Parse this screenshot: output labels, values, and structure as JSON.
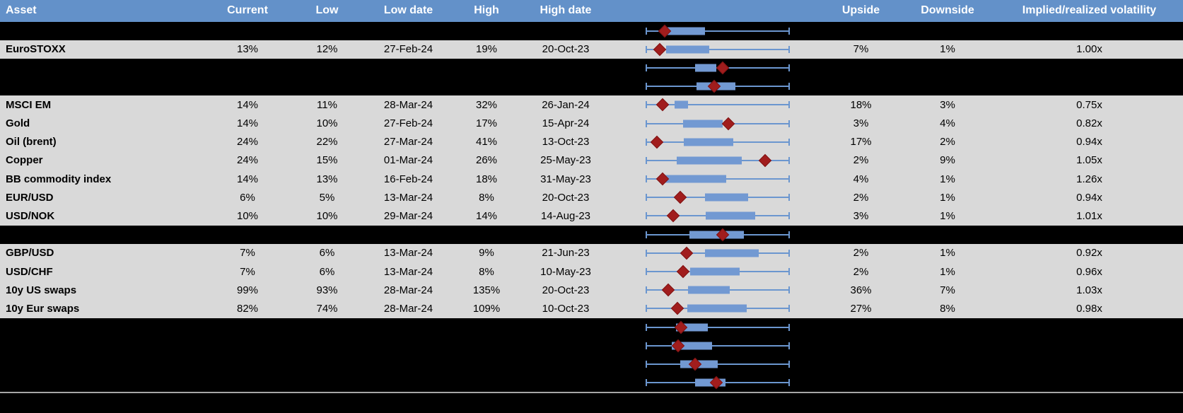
{
  "meta": {
    "description": "Implied volatility monitor table with 52-week range box plots",
    "colors": {
      "header_bg": "#6391c9",
      "header_text": "#ffffff",
      "data_row_bg": "#d9d9d9",
      "hidden_row_bg": "#000000",
      "box_fill": "#7299d2",
      "whisker": "#6b96cf",
      "marker": "#a11d1d",
      "divider": "#a6a6a6",
      "text": "#000000"
    }
  },
  "table": {
    "columns": [
      {
        "label": "Asset"
      },
      {
        "label": "Current"
      },
      {
        "label": "Low"
      },
      {
        "label": "Low date"
      },
      {
        "label": "High"
      },
      {
        "label": "High date"
      },
      {
        "label": ""
      },
      {
        "label": "Upside"
      },
      {
        "label": "Downside"
      },
      {
        "label": "Implied/realized volatility"
      }
    ],
    "rows": [
      {
        "type": "hidden",
        "plot": {
          "whisker": [
            0,
            1
          ],
          "box": [
            0.152,
            0.41
          ],
          "marker": 0.132
        }
      },
      {
        "type": "data",
        "asset": "EuroSTOXX",
        "current": "13%",
        "low": "12%",
        "low_date": "27-Feb-24",
        "high": "19%",
        "high_date": "20-Oct-23",
        "upside": "7%",
        "downside": "1%",
        "implied": "1.00x",
        "plot": {
          "whisker": [
            0,
            1
          ],
          "box": [
            0.141,
            0.443
          ],
          "marker": 0.097
        }
      },
      {
        "type": "hidden",
        "plot": {
          "whisker": [
            0,
            1
          ],
          "box": [
            0.343,
            0.49
          ],
          "marker": 0.534
        }
      },
      {
        "type": "hidden",
        "plot": {
          "whisker": [
            0,
            1
          ],
          "box": [
            0.353,
            0.623
          ],
          "marker": 0.475
        }
      },
      {
        "type": "data",
        "asset": "MSCI EM",
        "current": "14%",
        "low": "11%",
        "low_date": "28-Mar-24",
        "high": "32%",
        "high_date": "26-Jan-24",
        "upside": "18%",
        "downside": "3%",
        "implied": "0.75x",
        "plot": {
          "whisker": [
            0,
            1
          ],
          "box": [
            0.201,
            0.294
          ],
          "marker": 0.118
        }
      },
      {
        "type": "data",
        "asset": "Gold",
        "current": "14%",
        "low": "10%",
        "low_date": "27-Feb-24",
        "high": "17%",
        "high_date": "15-Apr-24",
        "upside": "3%",
        "downside": "4%",
        "implied": "0.82x",
        "plot": {
          "whisker": [
            0,
            1
          ],
          "box": [
            0.26,
            0.534
          ],
          "marker": 0.574
        }
      },
      {
        "type": "data",
        "asset": "Oil (brent)",
        "current": "24%",
        "low": "22%",
        "low_date": "27-Mar-24",
        "high": "41%",
        "high_date": "13-Oct-23",
        "upside": "17%",
        "downside": "2%",
        "implied": "0.94x",
        "plot": {
          "whisker": [
            0,
            1
          ],
          "box": [
            0.265,
            0.608
          ],
          "marker": 0.078
        }
      },
      {
        "type": "data",
        "asset": "Copper",
        "current": "24%",
        "low": "15%",
        "low_date": "01-Mar-24",
        "high": "26%",
        "high_date": "25-May-23",
        "upside": "2%",
        "downside": "9%",
        "implied": "1.05x",
        "plot": {
          "whisker": [
            0,
            1
          ],
          "box": [
            0.216,
            0.667
          ],
          "marker": 0.828
        }
      },
      {
        "type": "data",
        "asset": "BB commodity index",
        "current": "14%",
        "low": "13%",
        "low_date": "16-Feb-24",
        "high": "18%",
        "high_date": "31-May-23",
        "upside": "4%",
        "downside": "1%",
        "implied": "1.26x",
        "plot": {
          "whisker": [
            0,
            1
          ],
          "box": [
            0.132,
            0.559
          ],
          "marker": 0.118
        }
      },
      {
        "type": "data",
        "asset": "EUR/USD",
        "current": "6%",
        "low": "5%",
        "low_date": "13-Mar-24",
        "high": "8%",
        "high_date": "20-Oct-23",
        "upside": "2%",
        "downside": "1%",
        "implied": "0.94x",
        "plot": {
          "whisker": [
            0,
            1
          ],
          "box": [
            0.412,
            0.711
          ],
          "marker": 0.24
        }
      },
      {
        "type": "data",
        "asset": "USD/NOK",
        "current": "10%",
        "low": "10%",
        "low_date": "29-Mar-24",
        "high": "14%",
        "high_date": "14-Aug-23",
        "upside": "3%",
        "downside": "1%",
        "implied": "1.01x",
        "plot": {
          "whisker": [
            0,
            1
          ],
          "box": [
            0.417,
            0.76
          ],
          "marker": 0.191
        }
      },
      {
        "type": "hidden",
        "plot": {
          "whisker": [
            0,
            1
          ],
          "box": [
            0.304,
            0.681
          ],
          "marker": 0.534
        }
      },
      {
        "type": "data",
        "asset": "GBP/USD",
        "current": "7%",
        "low": "6%",
        "low_date": "13-Mar-24",
        "high": "9%",
        "high_date": "21-Jun-23",
        "upside": "2%",
        "downside": "1%",
        "implied": "0.92x",
        "plot": {
          "whisker": [
            0,
            1
          ],
          "box": [
            0.412,
            0.784
          ],
          "marker": 0.284
        }
      },
      {
        "type": "data",
        "asset": "USD/CHF",
        "current": "7%",
        "low": "6%",
        "low_date": "13-Mar-24",
        "high": "8%",
        "high_date": "10-May-23",
        "upside": "2%",
        "downside": "1%",
        "implied": "0.96x",
        "plot": {
          "whisker": [
            0,
            1
          ],
          "box": [
            0.309,
            0.652
          ],
          "marker": 0.26
        }
      },
      {
        "type": "data",
        "asset": "10y US swaps",
        "current": "99%",
        "low": "93%",
        "low_date": "28-Mar-24",
        "high": "135%",
        "high_date": "20-Oct-23",
        "upside": "36%",
        "downside": "7%",
        "implied": "1.03x",
        "plot": {
          "whisker": [
            0,
            1
          ],
          "box": [
            0.294,
            0.583
          ],
          "marker": 0.157
        }
      },
      {
        "type": "data",
        "asset": "10y Eur swaps",
        "current": "82%",
        "low": "74%",
        "low_date": "28-Mar-24",
        "high": "109%",
        "high_date": "10-Oct-23",
        "upside": "27%",
        "downside": "8%",
        "implied": "0.98x",
        "plot": {
          "whisker": [
            0,
            1
          ],
          "box": [
            0.289,
            0.701
          ],
          "marker": 0.221
        }
      },
      {
        "type": "hidden",
        "plot": {
          "whisker": [
            0,
            1
          ],
          "box": [
            0.211,
            0.431
          ],
          "marker": 0.245
        }
      },
      {
        "type": "hidden",
        "plot": {
          "whisker": [
            0,
            1
          ],
          "box": [
            0.181,
            0.461
          ],
          "marker": 0.225
        }
      },
      {
        "type": "hidden",
        "plot": {
          "whisker": [
            0,
            1
          ],
          "box": [
            0.24,
            0.5
          ],
          "marker": 0.343
        }
      },
      {
        "type": "hidden",
        "plot": {
          "whisker": [
            0,
            1
          ],
          "box": [
            0.343,
            0.554
          ],
          "marker": 0.49
        }
      }
    ]
  }
}
